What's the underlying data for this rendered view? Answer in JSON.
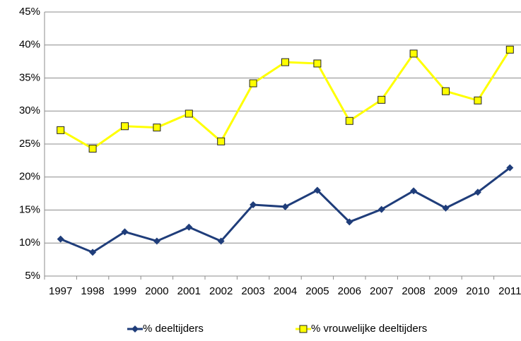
{
  "chart_data": {
    "type": "line",
    "categories": [
      "1997",
      "1998",
      "1999",
      "2000",
      "2001",
      "2002",
      "2003",
      "2004",
      "2005",
      "2006",
      "2007",
      "2008",
      "2009",
      "2010",
      "2011"
    ],
    "series": [
      {
        "name": "% deeltijders",
        "color": "#1f3d7a",
        "marker": "diamond",
        "values": [
          10.6,
          8.6,
          11.7,
          10.3,
          12.4,
          10.3,
          15.8,
          15.5,
          18.0,
          13.2,
          15.1,
          17.9,
          15.3,
          17.7,
          21.4
        ]
      },
      {
        "name": "% vrouwelijke deeltijders",
        "color": "#ffff00",
        "marker": "square",
        "values": [
          27.1,
          24.3,
          27.7,
          27.5,
          29.6,
          25.4,
          34.2,
          37.4,
          37.2,
          28.5,
          31.7,
          38.7,
          33.0,
          31.6,
          39.3
        ]
      }
    ],
    "ylim": [
      5,
      45
    ],
    "yticks": [
      {
        "value": 5,
        "label": "5%"
      },
      {
        "value": 10,
        "label": "10%"
      },
      {
        "value": 15,
        "label": "15%"
      },
      {
        "value": 20,
        "label": "20%"
      },
      {
        "value": 25,
        "label": "25%"
      },
      {
        "value": 30,
        "label": "30%"
      },
      {
        "value": 35,
        "label": "35%"
      },
      {
        "value": 40,
        "label": "40%"
      },
      {
        "value": 45,
        "label": "45%"
      }
    ],
    "grid": true,
    "legend": "bottom"
  }
}
